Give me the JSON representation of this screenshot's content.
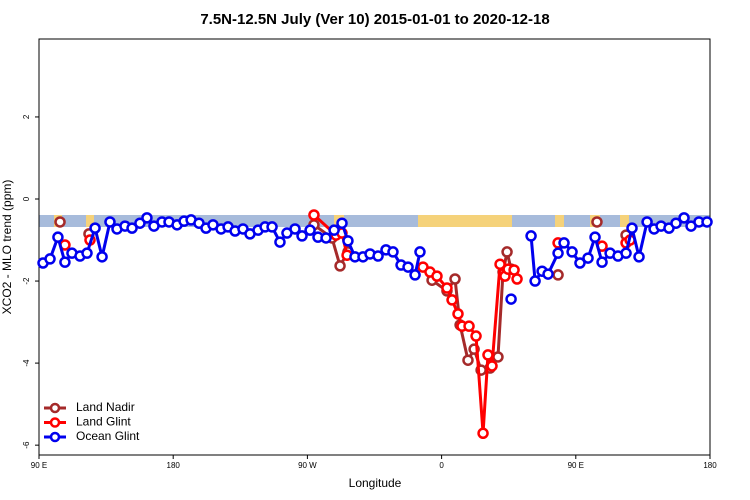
{
  "chart_data": {
    "type": "line",
    "title": "7.5N-12.5N July (Ver 10)   2015-01-01 to 2020-12-18",
    "xlabel": "Longitude",
    "ylabel": "XCO2 - MLO trend (ppm)",
    "xlim": [
      90,
      540
    ],
    "xticks": [
      {
        "value": 90,
        "label": "90 E"
      },
      {
        "value": 180,
        "label": "180"
      },
      {
        "value": 270,
        "label": "90 W"
      },
      {
        "value": 360,
        "label": "0"
      },
      {
        "value": 450,
        "label": "90 E"
      },
      {
        "value": 540,
        "label": "180"
      }
    ],
    "ylim": [
      -6.24,
      3.9
    ],
    "yticks": [
      -6,
      -4,
      -2,
      0,
      2
    ],
    "legend": "lower left",
    "series": [
      {
        "name": "Land Nadir",
        "color": "#a52a2a",
        "x": [
          104.1,
          null,
          123.5,
          null,
          274.4,
          286.5,
          291.9,
          297.2,
          null,
          353.6,
          363.6,
          369,
          372.4,
          377.7,
          381.8,
          386.5,
          392.5,
          397.8,
          401.2,
          403.9,
          406.6,
          null,
          438.1,
          null,
          464.2,
          null,
          483.7
        ],
        "values": [
          -0.56,
          null,
          -0.85,
          null,
          -0.63,
          -0.95,
          -1.63,
          -1.29,
          null,
          -1.98,
          -2.24,
          -1.95,
          -3.07,
          -3.93,
          -3.66,
          -4.17,
          -4.12,
          -3.85,
          -1.78,
          -1.29,
          -1.71,
          null,
          -1.85,
          null,
          -0.56,
          null,
          -0.88
        ]
      },
      {
        "name": "Land Glint",
        "color": "#ff0000",
        "x": [
          107.4,
          null,
          124.2,
          null,
          274.4,
          289.2,
          293.2,
          296.6,
          null,
          347.5,
          352.2,
          356.9,
          363.6,
          367,
          371,
          373.7,
          378.4,
          383.1,
          387.8,
          391.1,
          393.8,
          399.2,
          402.5,
          404.6,
          408.6,
          410.6,
          null,
          438.1,
          null,
          467.6,
          null,
          483.7,
          486.4
        ],
        "values": [
          -1.12,
          null,
          -1.0,
          null,
          -0.39,
          -0.88,
          -0.83,
          -1.37,
          null,
          -1.66,
          -1.78,
          -1.88,
          -2.17,
          -2.46,
          -2.8,
          -3.1,
          -3.1,
          -3.34,
          -5.71,
          -3.8,
          -4.07,
          -1.59,
          -1.88,
          -1.71,
          -1.73,
          -1.95,
          null,
          -1.07,
          null,
          -1.15,
          null,
          -1.07,
          -1.0
        ]
      },
      {
        "name": "Ocean Glint",
        "color": "#0000ee",
        "x": [
          92.7,
          97.4,
          102.7,
          107.4,
          112.1,
          117.5,
          122.2,
          127.6,
          132.3,
          137.6,
          142.3,
          147.7,
          152.4,
          157.7,
          162.4,
          167.1,
          172.5,
          177.2,
          182.6,
          187.3,
          192,
          197.3,
          202,
          206.7,
          212.1,
          216.8,
          221.5,
          226.8,
          231.5,
          236.9,
          241.6,
          246.3,
          251.6,
          256.3,
          261.7,
          266.4,
          271.8,
          277.1,
          282.5,
          287.9,
          293.2,
          297.2,
          301.9,
          307.3,
          312,
          317.4,
          322.7,
          327.4,
          332.8,
          337.5,
          342.2,
          345.5,
          null,
          406.6,
          null,
          420,
          422.7,
          427.4,
          431.4,
          438.1,
          442.1,
          447.5,
          452.8,
          458.2,
          462.9,
          467.6,
          473,
          478.3,
          483.7,
          487.7,
          492.4,
          497.8,
          502.5,
          507.2,
          512.5,
          517.2,
          522.6,
          527.3,
          532.6,
          538
        ],
        "values": [
          -1.56,
          -1.46,
          -0.93,
          -1.54,
          -1.32,
          -1.39,
          -1.32,
          -0.71,
          -1.41,
          -0.56,
          -0.73,
          -0.66,
          -0.71,
          -0.59,
          -0.46,
          -0.66,
          -0.56,
          -0.56,
          -0.63,
          -0.54,
          -0.51,
          -0.59,
          -0.71,
          -0.63,
          -0.73,
          -0.68,
          -0.78,
          -0.73,
          -0.85,
          -0.76,
          -0.68,
          -0.68,
          -1.05,
          -0.83,
          -0.73,
          -0.9,
          -0.76,
          -0.93,
          -0.95,
          -0.76,
          -0.59,
          -1.02,
          -1.41,
          -1.41,
          -1.34,
          -1.39,
          -1.24,
          -1.29,
          -1.61,
          -1.66,
          -1.85,
          -1.29,
          null,
          -2.44,
          null,
          -0.9,
          -2.0,
          -1.76,
          -1.83,
          -1.32,
          -1.07,
          -1.29,
          -1.56,
          -1.44,
          -0.93,
          -1.54,
          -1.32,
          -1.39,
          -1.32,
          -0.71,
          -1.41,
          -0.56,
          -0.73,
          -0.66,
          -0.71,
          -0.59,
          -0.46,
          -0.66,
          -0.56,
          -0.56
        ]
      }
    ]
  }
}
